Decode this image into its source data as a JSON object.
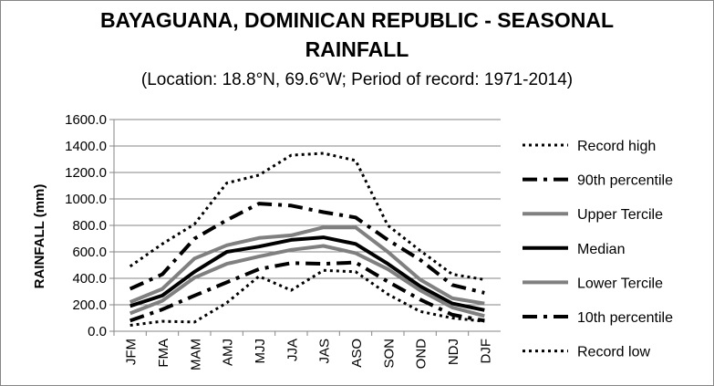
{
  "chart_data": {
    "type": "line",
    "title_line1": "BAYAGUANA, DOMINICAN REPUBLIC - SEASONAL",
    "title_line2": "RAINFALL",
    "subtitle": "(Location: 18.8°N, 69.6°W; Period of record: 1971-2014)",
    "ylabel": "RAINFALL (mm)",
    "xlabel": "",
    "ylim": [
      0,
      1600
    ],
    "ytick_step": 200,
    "yticks": [
      "0.0",
      "200.0",
      "400.0",
      "600.0",
      "800.0",
      "1000.0",
      "1200.0",
      "1400.0",
      "1600.0"
    ],
    "categories": [
      "JFM",
      "FMA",
      "MAM",
      "AMJ",
      "MJJ",
      "JJA",
      "JAS",
      "ASO",
      "SON",
      "OND",
      "NDJ",
      "DJF"
    ],
    "grid": "horizontal",
    "legend_position": "right",
    "series": [
      {
        "name": "Record high",
        "color": "#000000",
        "style": "dotted",
        "width": 3,
        "values": [
          490,
          660,
          810,
          1120,
          1180,
          1330,
          1345,
          1290,
          800,
          610,
          430,
          390
        ]
      },
      {
        "name": "90th percentile",
        "color": "#000000",
        "style": "dashdot",
        "width": 4,
        "values": [
          320,
          430,
          700,
          840,
          965,
          950,
          900,
          860,
          690,
          540,
          350,
          290
        ]
      },
      {
        "name": "Upper Tercile",
        "color": "#808080",
        "style": "solid",
        "width": 4,
        "values": [
          220,
          320,
          550,
          650,
          705,
          725,
          785,
          785,
          600,
          390,
          250,
          210
        ]
      },
      {
        "name": "Median",
        "color": "#000000",
        "style": "solid",
        "width": 4,
        "values": [
          190,
          270,
          450,
          600,
          640,
          690,
          710,
          660,
          510,
          340,
          210,
          160
        ]
      },
      {
        "name": "Lower Tercile",
        "color": "#808080",
        "style": "solid",
        "width": 4,
        "values": [
          135,
          230,
          405,
          510,
          565,
          615,
          645,
          590,
          470,
          310,
          180,
          115
        ]
      },
      {
        "name": "10th percentile",
        "color": "#000000",
        "style": "dashdot",
        "width": 4,
        "values": [
          80,
          165,
          270,
          370,
          470,
          515,
          510,
          520,
          375,
          240,
          125,
          80
        ]
      },
      {
        "name": "Record low",
        "color": "#000000",
        "style": "dotted",
        "width": 3,
        "values": [
          45,
          75,
          70,
          215,
          415,
          310,
          460,
          450,
          280,
          150,
          100,
          75
        ]
      }
    ]
  }
}
